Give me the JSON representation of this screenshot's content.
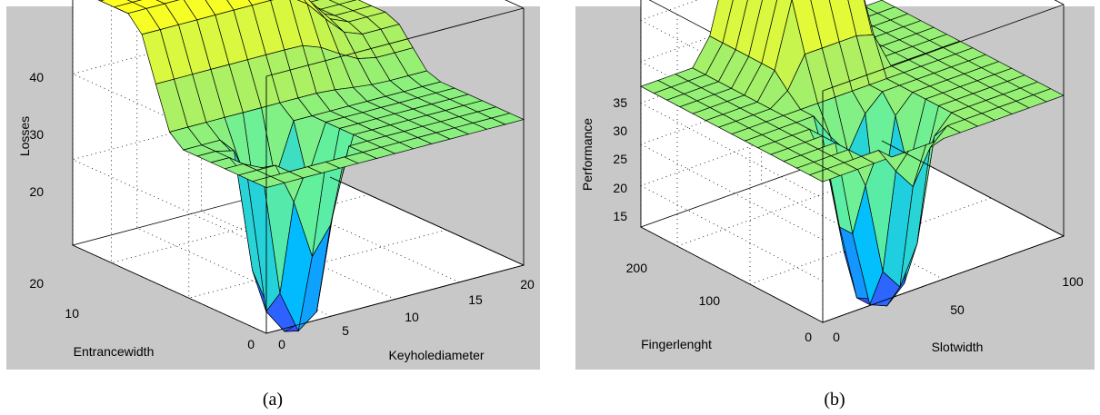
{
  "figure": {
    "captions": [
      "(a)",
      "(b)"
    ]
  },
  "chart_data": [
    {
      "type": "surface",
      "title": "",
      "xlabel": "Keyholediameter",
      "ylabel": "Entrancewidth",
      "zlabel": "Losses",
      "x_ticks": [
        "0",
        "5",
        "10",
        "15",
        "20"
      ],
      "y_ticks": [
        "0",
        "10",
        "20"
      ],
      "z_ticks": [
        "20",
        "30",
        "40"
      ],
      "xlim": [
        0,
        20
      ],
      "ylim": [
        0,
        25
      ],
      "zlim": [
        10,
        40
      ],
      "grid": true,
      "colormap": [
        "#3f3fff",
        "#00bfff",
        "#60f0a0",
        "#b0f060",
        "#ffff20"
      ],
      "description_values": {
        "plateau_level": 27,
        "peak_level": 40,
        "dip_level": 5
      }
    },
    {
      "type": "surface",
      "title": "",
      "xlabel": "Slotwidth",
      "ylabel": "Fingerlenght",
      "zlabel": "Performance",
      "x_ticks": [
        "0",
        "50",
        "100"
      ],
      "y_ticks": [
        "0",
        "100",
        "200"
      ],
      "z_ticks": [
        "15",
        "20",
        "25",
        "30",
        "35"
      ],
      "xlim": [
        0,
        100
      ],
      "ylim": [
        0,
        250
      ],
      "zlim": [
        10,
        38
      ],
      "grid": true,
      "colormap": [
        "#3f3fff",
        "#00bfff",
        "#60f0a0",
        "#b0f060",
        "#ffff20"
      ],
      "description_values": {
        "plateau_level": 27,
        "peak_level": 38,
        "dip_level": 5
      }
    }
  ]
}
